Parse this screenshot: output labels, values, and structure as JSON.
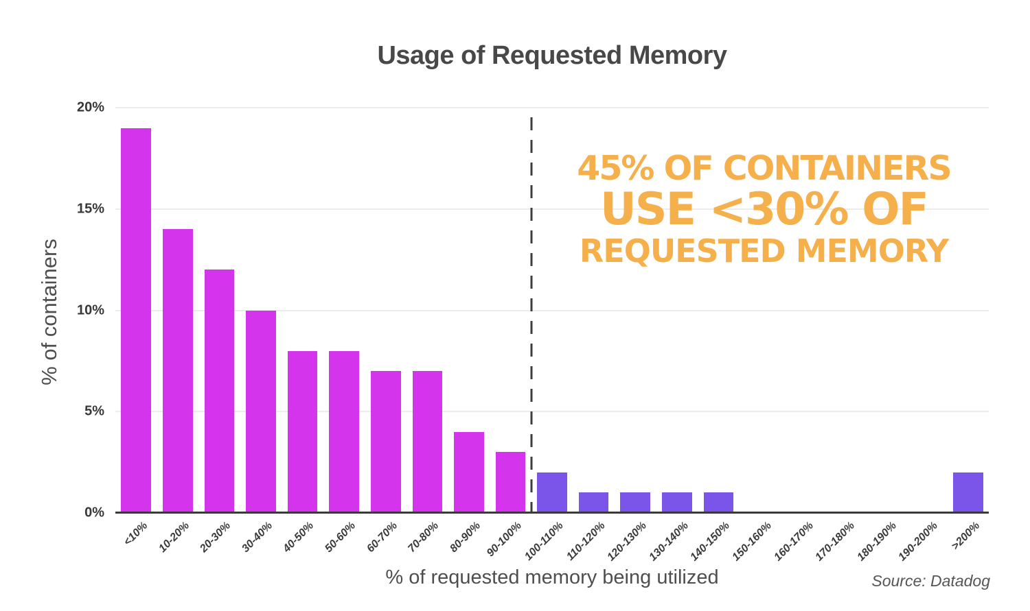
{
  "chart": {
    "title": "Usage of Requested Memory",
    "ylabel": "% of containers",
    "xlabel": "% of requested memory being utilized",
    "source": "Source: Datadog"
  },
  "annotation": {
    "line1": "45% OF CONTAINERS",
    "line2": "USE <30% OF",
    "line3": "REQUESTED MEMORY",
    "color": "#f5b04c"
  },
  "chart_data": {
    "type": "bar",
    "title": "Usage of Requested Memory",
    "xlabel": "% of requested memory being utilized",
    "ylabel": "% of containers",
    "categories": [
      "<10%",
      "10-20%",
      "20-30%",
      "30-40%",
      "40-50%",
      "50-60%",
      "60-70%",
      "70-80%",
      "80-90%",
      "90-100%",
      "100-110%",
      "110-120%",
      "120-130%",
      "130-140%",
      "140-150%",
      "150-160%",
      "160-170%",
      "170-180%",
      "180-190%",
      "190-200%",
      ">200%"
    ],
    "values": [
      19,
      14,
      12,
      10,
      8,
      8,
      7,
      7,
      4,
      3,
      2,
      1,
      1,
      1,
      1,
      0,
      0,
      0,
      0,
      0,
      2
    ],
    "ylim": [
      0,
      20
    ],
    "ytick_values": [
      0,
      5,
      10,
      15,
      20
    ],
    "ytick_labels": [
      "0%",
      "5%",
      "10%",
      "15%",
      "20%"
    ],
    "grid": true,
    "legend_position": "none",
    "colors": {
      "bars_below_100": "#d435ec",
      "bars_above_100": "#7b55ea"
    },
    "color_split_index": 10,
    "divider": {
      "between": [
        "90-100%",
        "100-110%"
      ],
      "style": "dashed",
      "color": "#3d3d3d"
    },
    "annotation": {
      "lines": [
        "45% OF CONTAINERS",
        "USE <30% OF",
        "REQUESTED MEMORY"
      ],
      "color": "#f5b04c"
    },
    "source": "Source: Datadog"
  }
}
